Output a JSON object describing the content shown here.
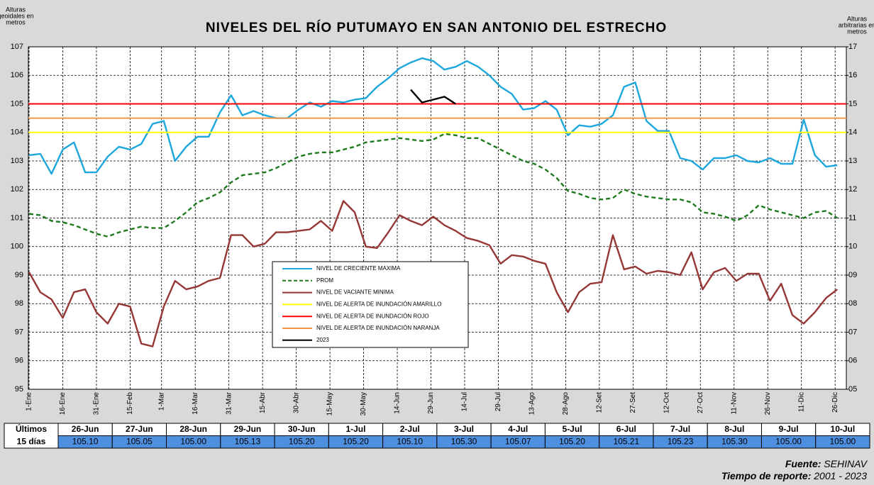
{
  "chart_data": {
    "type": "line",
    "title": "NIVELES DEL RÍO PUTUMAYO EN SAN ANTONIO DEL ESTRECHO",
    "y_label": [
      "Alturas",
      "geoidales en",
      "metros"
    ],
    "y2_label": [
      "Alturas",
      "arbitrarias en",
      "metros"
    ],
    "x": [
      1,
      6,
      11,
      16,
      21,
      26,
      31,
      36,
      41,
      46,
      51,
      56,
      61,
      66,
      71,
      76,
      81,
      86,
      91,
      96,
      101,
      106,
      111,
      116,
      121,
      126,
      131,
      136,
      141,
      146,
      151,
      156,
      161,
      166,
      171,
      176,
      181,
      186,
      191,
      196,
      201,
      206,
      211,
      216,
      221,
      226,
      231,
      236,
      241,
      246,
      251,
      256,
      261,
      266,
      271,
      276,
      281,
      286,
      291,
      296,
      301,
      306,
      311,
      316,
      321,
      326,
      331,
      336,
      341,
      346,
      351,
      356,
      361
    ],
    "xlim": [
      1,
      365
    ],
    "xticks": [
      {
        "value": 1,
        "label": "1-Ene"
      },
      {
        "value": 16,
        "label": "16-Ene"
      },
      {
        "value": 31,
        "label": "31-Ene"
      },
      {
        "value": 46,
        "label": "15-Feb"
      },
      {
        "value": 60,
        "label": "1-Mar"
      },
      {
        "value": 75,
        "label": "16-Mar"
      },
      {
        "value": 90,
        "label": "31-Mar"
      },
      {
        "value": 105,
        "label": "15-Abr"
      },
      {
        "value": 120,
        "label": "30-Abr"
      },
      {
        "value": 135,
        "label": "15-May"
      },
      {
        "value": 150,
        "label": "30-May"
      },
      {
        "value": 165,
        "label": "14-Jun"
      },
      {
        "value": 180,
        "label": "29-Jun"
      },
      {
        "value": 195,
        "label": "14-Jul"
      },
      {
        "value": 210,
        "label": "29-Jul"
      },
      {
        "value": 225,
        "label": "13-Ago"
      },
      {
        "value": 240,
        "label": "28-Ago"
      },
      {
        "value": 255,
        "label": "12-Set"
      },
      {
        "value": 270,
        "label": "27-Set"
      },
      {
        "value": 285,
        "label": "12-Oct"
      },
      {
        "value": 300,
        "label": "27-Oct"
      },
      {
        "value": 315,
        "label": "11-Nov"
      },
      {
        "value": 330,
        "label": "26-Nov"
      },
      {
        "value": 345,
        "label": "11-Dic"
      },
      {
        "value": 360,
        "label": "26-Dic"
      }
    ],
    "ylim": [
      95,
      107
    ],
    "yticks": [
      95,
      96,
      97,
      98,
      99,
      100,
      101,
      102,
      103,
      104,
      105,
      106,
      107
    ],
    "y2lim": [
      5,
      17
    ],
    "y2ticks": [
      {
        "value": 5,
        "label": "05"
      },
      {
        "value": 6,
        "label": "06"
      },
      {
        "value": 7,
        "label": "07"
      },
      {
        "value": 8,
        "label": "08"
      },
      {
        "value": 9,
        "label": "09"
      },
      10,
      11,
      12,
      13,
      14,
      15,
      16,
      17
    ],
    "grid": true,
    "series": [
      {
        "name": "NIVEL DE CRECIENTE MAXIMA",
        "color": "#1ea7dc",
        "values": [
          103.2,
          103.25,
          102.55,
          103.4,
          103.65,
          102.6,
          102.6,
          103.15,
          103.5,
          103.4,
          103.6,
          104.3,
          104.4,
          103.0,
          103.5,
          103.85,
          103.85,
          104.7,
          105.3,
          104.6,
          104.75,
          104.6,
          104.5,
          104.5,
          104.8,
          105.05,
          104.9,
          105.1,
          105.05,
          105.15,
          105.2,
          105.6,
          105.9,
          106.25,
          106.45,
          106.6,
          106.5,
          106.2,
          106.3,
          106.5,
          106.3,
          106.0,
          105.6,
          105.35,
          104.8,
          104.85,
          105.1,
          104.8,
          103.9,
          104.25,
          104.2,
          104.3,
          104.6,
          105.6,
          105.75,
          104.4,
          104.05,
          104.05,
          103.1,
          103.0,
          102.7,
          103.1,
          103.1,
          103.2,
          103.0,
          102.95,
          103.1,
          102.9,
          102.9,
          104.45,
          103.2,
          102.8,
          102.85
        ]
      },
      {
        "name": "PROM",
        "color": "#1e7a1e",
        "style": "dashed",
        "values": [
          101.15,
          101.1,
          100.9,
          100.85,
          100.75,
          100.6,
          100.45,
          100.35,
          100.5,
          100.6,
          100.7,
          100.65,
          100.65,
          100.9,
          101.2,
          101.55,
          101.7,
          101.9,
          102.25,
          102.5,
          102.55,
          102.6,
          102.75,
          102.95,
          103.15,
          103.25,
          103.3,
          103.3,
          103.4,
          103.5,
          103.65,
          103.7,
          103.75,
          103.8,
          103.75,
          103.7,
          103.75,
          103.95,
          103.9,
          103.8,
          103.8,
          103.6,
          103.4,
          103.2,
          103.0,
          102.9,
          102.7,
          102.4,
          101.95,
          101.85,
          101.7,
          101.65,
          101.7,
          102.0,
          101.85,
          101.75,
          101.7,
          101.65,
          101.65,
          101.55,
          101.2,
          101.15,
          101.05,
          100.9,
          101.1,
          101.45,
          101.3,
          101.2,
          101.1,
          101.0,
          101.2,
          101.25,
          101.0
        ]
      },
      {
        "name": "NIVEL DE VACIANTE MINIMA",
        "color": "#953735",
        "values": [
          99.1,
          98.4,
          98.15,
          97.5,
          98.4,
          98.5,
          97.7,
          97.3,
          98.0,
          97.9,
          96.6,
          96.5,
          97.9,
          98.8,
          98.5,
          98.6,
          98.8,
          98.9,
          100.4,
          100.4,
          100.0,
          100.1,
          100.5,
          100.5,
          100.55,
          100.6,
          100.9,
          100.55,
          101.6,
          101.2,
          100.0,
          99.95,
          100.5,
          101.1,
          100.9,
          100.75,
          101.05,
          100.75,
          100.55,
          100.3,
          100.2,
          100.05,
          99.4,
          99.7,
          99.65,
          99.5,
          99.4,
          98.4,
          97.7,
          98.4,
          98.7,
          98.75,
          100.4,
          99.2,
          99.3,
          99.05,
          99.15,
          99.1,
          99.0,
          99.8,
          98.5,
          99.1,
          99.25,
          98.8,
          99.05,
          99.05,
          98.1,
          98.7,
          97.6,
          97.3,
          97.7,
          98.2,
          98.5
        ]
      },
      {
        "name": "NIVEL DE ALERTA DE INUNDACIÓN AMARILLO",
        "color": "#ffff00",
        "value": 104
      },
      {
        "name": "NIVEL DE ALERTA DE INUNDACIÓN ROJO",
        "color": "#ff0000",
        "value": 105
      },
      {
        "name": "NIVEL DE ALERTA DE INUNDACIÓN NARANJA",
        "color": "#f79646",
        "value": 104.5
      },
      {
        "name": "2023",
        "color": "#000000",
        "values": [
          null,
          null,
          null,
          null,
          null,
          null,
          null,
          null,
          null,
          null,
          null,
          null,
          null,
          null,
          null,
          null,
          null,
          null,
          null,
          null,
          null,
          null,
          null,
          null,
          null,
          null,
          null,
          null,
          null,
          null,
          null,
          null,
          null,
          null,
          105.5,
          105.05,
          105.15,
          105.25,
          105.0,
          null,
          null,
          null,
          null,
          null,
          null,
          null,
          null,
          null,
          null,
          null,
          null,
          null,
          null,
          null,
          null,
          null,
          null,
          null,
          null,
          null,
          null,
          null,
          null,
          null,
          null,
          null,
          null,
          null,
          null,
          null,
          null,
          null,
          null
        ]
      }
    ]
  },
  "table": {
    "row_label": [
      "Últimos",
      "15 días"
    ],
    "dates": [
      "26-Jun",
      "27-Jun",
      "28-Jun",
      "29-Jun",
      "30-Jun",
      "1-Jul",
      "2-Jul",
      "3-Jul",
      "4-Jul",
      "5-Jul",
      "6-Jul",
      "7-Jul",
      "8-Jul",
      "9-Jul",
      "10-Jul"
    ],
    "values": [
      105.1,
      105.05,
      105.0,
      105.13,
      105.2,
      105.2,
      105.1,
      105.3,
      105.07,
      105.2,
      105.21,
      105.23,
      105.3,
      105.0,
      105.0
    ],
    "value_labels": [
      "105.10",
      "105.05",
      "105.00",
      "105.13",
      "105.20",
      "105.20",
      "105.10",
      "105.30",
      "105.07",
      "105.20",
      "105.21",
      "105.23",
      "105.30",
      "105.00",
      "105.00"
    ]
  },
  "footer": {
    "source_label": "Fuente:",
    "source": "SEHINAV",
    "period_label": "Tiempo de reporte:",
    "period": "2001 - 2023"
  }
}
